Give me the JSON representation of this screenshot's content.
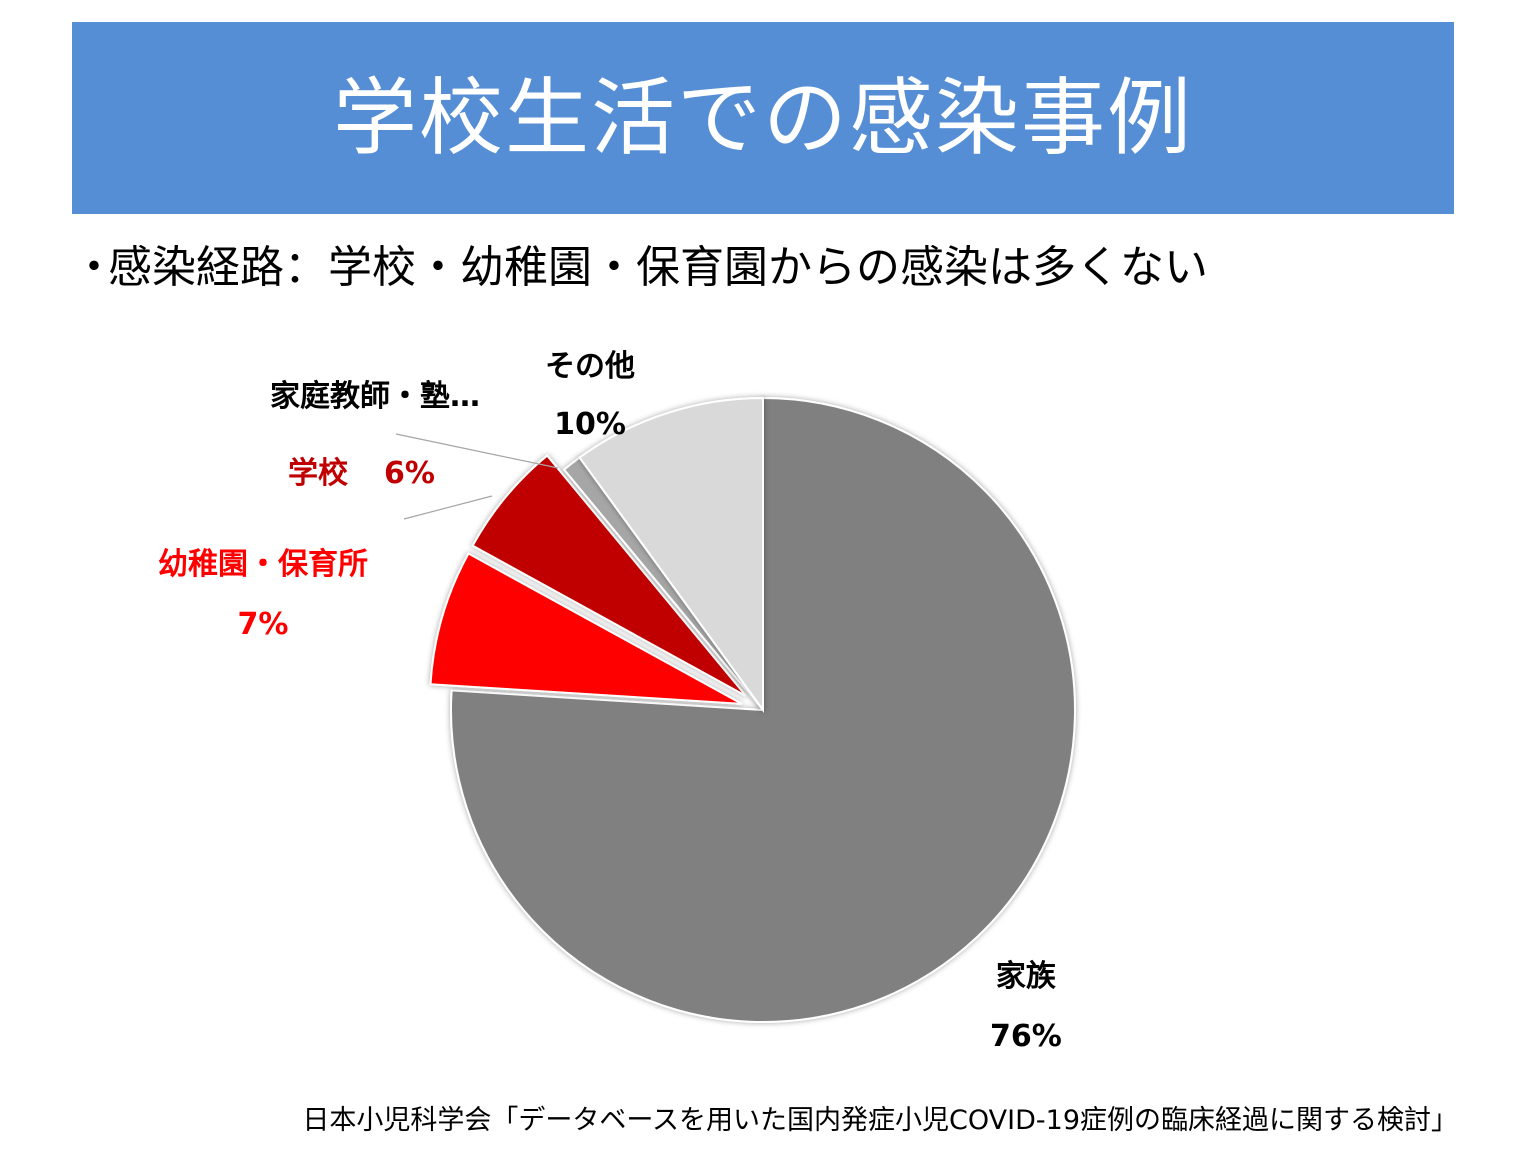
{
  "header": {
    "title": "学校生活での感染事例"
  },
  "bullet": {
    "marker": "・",
    "text": "感染経路：学校・幼稚園・保育園からの感染は多くない"
  },
  "chart_data": {
    "type": "pie",
    "title": "",
    "slices": [
      {
        "label": "家族",
        "value": 76,
        "value_label": "76%",
        "color": "#808080",
        "label_color": "#000000",
        "exploded": false
      },
      {
        "label": "幼稚園・保育所",
        "value": 7,
        "value_label": "7%",
        "color": "#ff0000",
        "label_color": "#ff0000",
        "exploded": true
      },
      {
        "label": "学校",
        "value": 6,
        "value_label": "6%",
        "color": "#c00000",
        "label_color": "#c00000",
        "exploded": true
      },
      {
        "label": "家庭教師・塾…",
        "value": 1,
        "value_label": "",
        "color": "#a6a6a6",
        "label_color": "#000000",
        "exploded": false
      },
      {
        "label": "その他",
        "value": 10,
        "value_label": "10%",
        "color": "#d9d9d9",
        "label_color": "#000000",
        "exploded": false
      }
    ]
  },
  "source": {
    "text": "日本小児科学会「データベースを用いた国内発症小児COVID-19症例の臨床経過に関する検討」"
  }
}
